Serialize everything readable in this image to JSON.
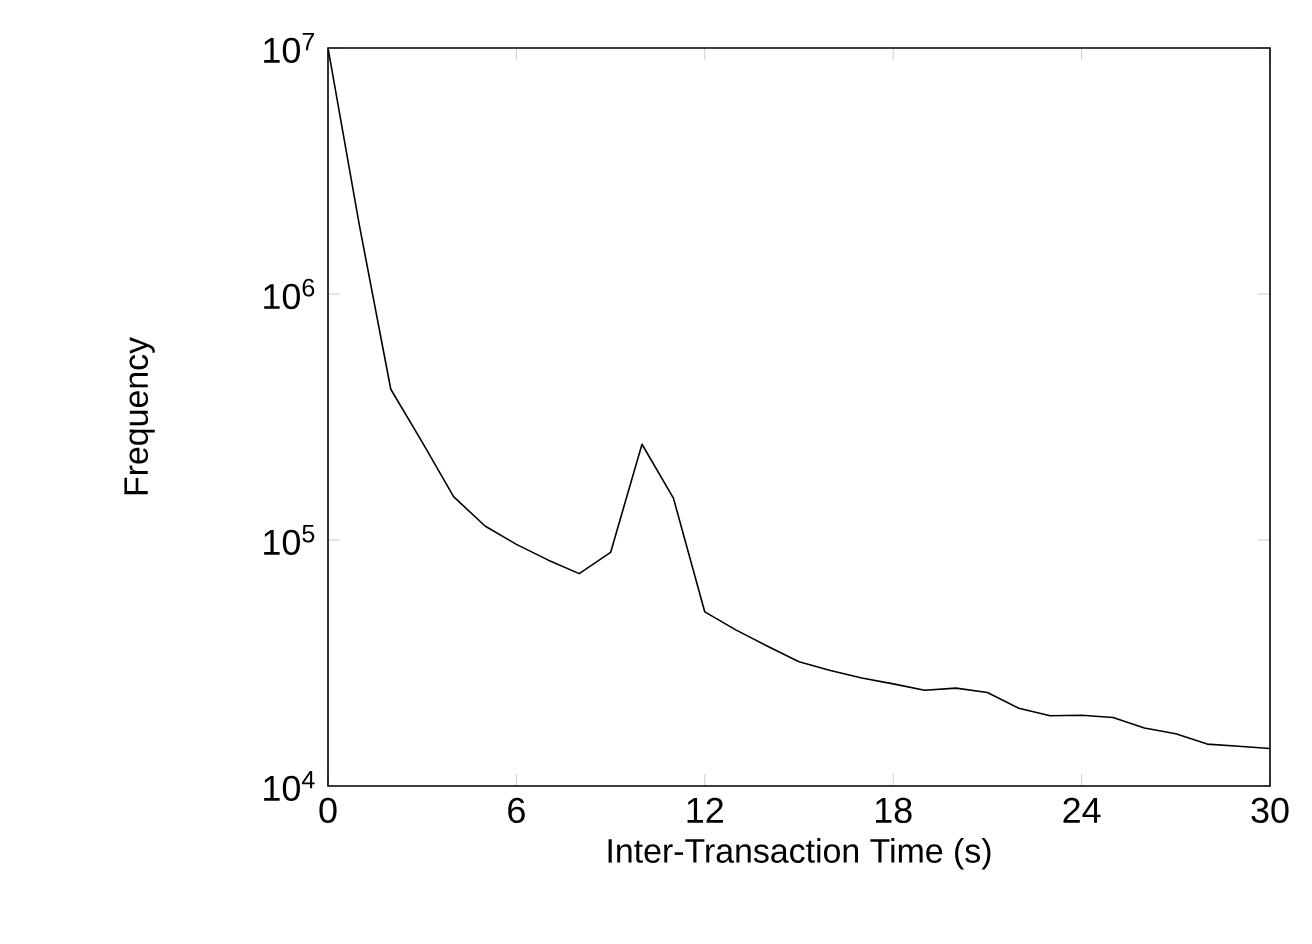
{
  "chart_data": {
    "type": "line",
    "xlabel": "Inter-Transaction Time (s)",
    "ylabel": "Frequency",
    "x": [
      0,
      1,
      2,
      3,
      4,
      5,
      6,
      7,
      8,
      9,
      10,
      11,
      12,
      13,
      14,
      15,
      16,
      17,
      18,
      19,
      20,
      21,
      22,
      23,
      24,
      25,
      26,
      27,
      28,
      29,
      30
    ],
    "series": [
      {
        "color": "#000000",
        "values": [
          10000000,
          1900000,
          410000,
          250000,
          150000,
          114000,
          96000,
          83000,
          73000,
          89000,
          245000,
          148000,
          51000,
          43000,
          37000,
          32000,
          29500,
          27500,
          26000,
          24500,
          25000,
          24000,
          20700,
          19300,
          19400,
          19000,
          17200,
          16300,
          14800,
          14500,
          14200
        ]
      }
    ],
    "xlim": [
      0,
      30
    ],
    "xticks": [
      0,
      6,
      12,
      18,
      24,
      30
    ],
    "ylim": [
      10000,
      10000000
    ],
    "log": "y",
    "yticks": [
      {
        "value": 10000,
        "label": "10$^{4}$"
      },
      {
        "value": 100000,
        "label": "10$^{5}$"
      },
      {
        "value": 1000000,
        "label": "10$^{6}$"
      },
      {
        "value": 10000000,
        "label": "10$^{7}$"
      }
    ],
    "grid": false,
    "marker": "none",
    "line_style": "solid"
  }
}
